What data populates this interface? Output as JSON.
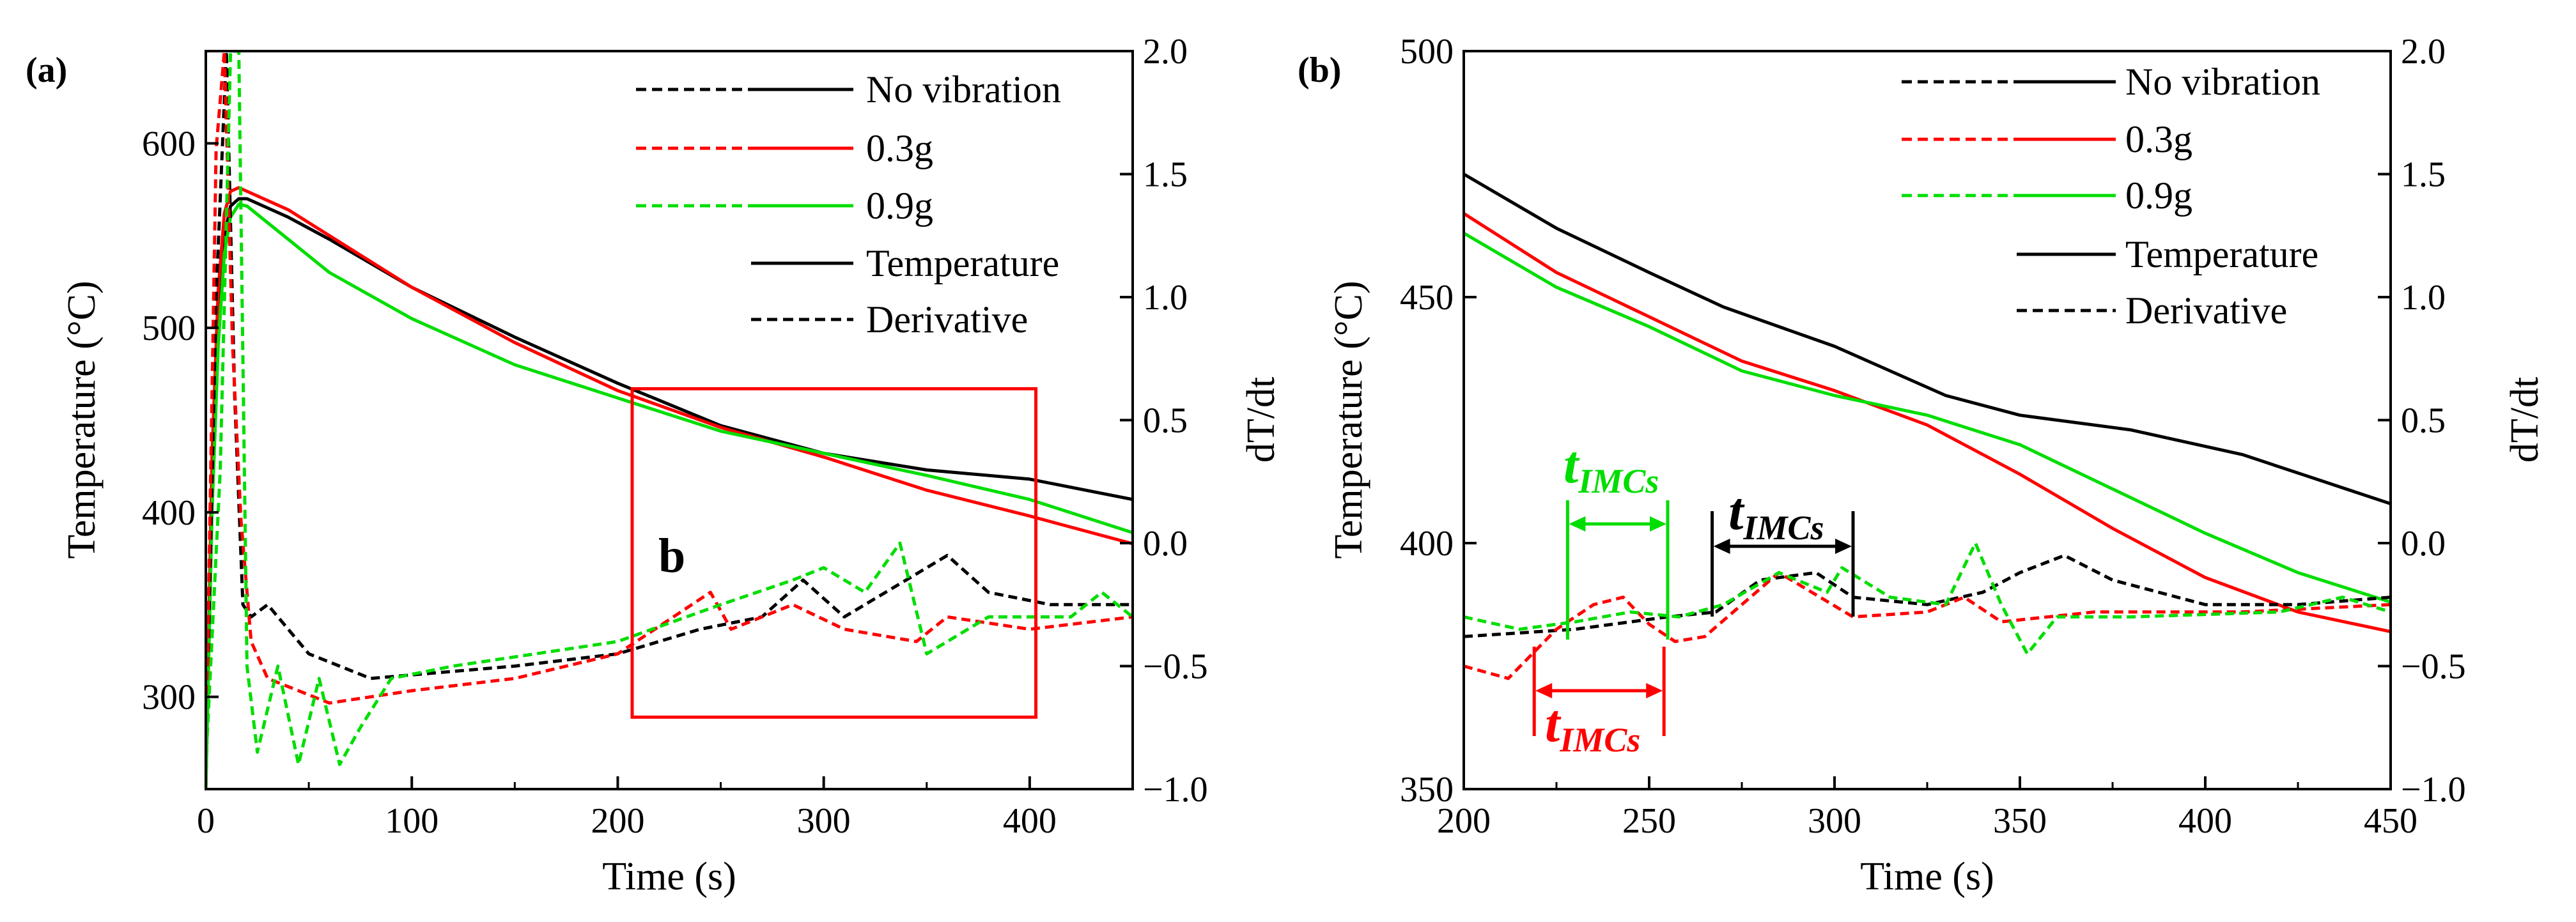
{
  "chart_data": [
    {
      "panel_label": "(a)",
      "type": "line",
      "xlabel": "Time (s)",
      "ylabel": "Temperature (°C)",
      "y2label": "dT/dt",
      "xlim": [
        0,
        450
      ],
      "ylim": [
        250,
        650
      ],
      "y2lim": [
        -1.0,
        2.0
      ],
      "xticks": [
        "0",
        "100",
        "200",
        "300",
        "400"
      ],
      "yticks": [
        "300",
        "400",
        "500",
        "600"
      ],
      "y2ticks": [
        "−1.0",
        "−0.5",
        "0.0",
        "0.5",
        "1.0",
        "1.5",
        "2.0"
      ],
      "inset_label": "b",
      "inset_box": {
        "x": [
          207,
          403
        ],
        "y": [
          289,
          467
        ]
      },
      "series": [
        {
          "name": "No vibration",
          "kind": "temperature",
          "color": "#000000",
          "x": [
            0,
            3,
            6,
            9,
            12,
            16,
            20,
            40,
            60,
            100,
            150,
            200,
            250,
            300,
            350,
            400,
            450
          ],
          "y": [
            250,
            420,
            505,
            550,
            566,
            570,
            570,
            560,
            548,
            522,
            495,
            470,
            447,
            432,
            423,
            418,
            407
          ]
        },
        {
          "name": "0.3g",
          "kind": "temperature",
          "color": "#ff0000",
          "x": [
            0,
            3,
            6,
            9,
            12,
            16,
            20,
            40,
            60,
            100,
            150,
            200,
            250,
            300,
            350,
            400,
            450
          ],
          "y": [
            250,
            430,
            520,
            562,
            574,
            576,
            574,
            564,
            550,
            522,
            492,
            466,
            446,
            430,
            412,
            398,
            383
          ]
        },
        {
          "name": "0.9g",
          "kind": "temperature",
          "color": "#00dd00",
          "x": [
            0,
            3,
            6,
            9,
            12,
            16,
            20,
            40,
            60,
            100,
            150,
            200,
            250,
            300,
            350,
            400,
            450
          ],
          "y": [
            250,
            400,
            490,
            540,
            560,
            567,
            566,
            548,
            530,
            505,
            480,
            462,
            444,
            432,
            420,
            407,
            389
          ]
        },
        {
          "name": "No vibration",
          "kind": "derivative",
          "color": "#000000",
          "x": [
            0,
            5,
            10,
            14,
            18,
            22,
            30,
            50,
            80,
            150,
            200,
            240,
            270,
            290,
            310,
            340,
            360,
            380,
            410,
            450
          ],
          "y": [
            -0.9,
            1.0,
            2.0,
            0.6,
            -0.25,
            -0.3,
            -0.25,
            -0.45,
            -0.55,
            -0.5,
            -0.45,
            -0.35,
            -0.3,
            -0.15,
            -0.3,
            -0.15,
            -0.05,
            -0.2,
            -0.25,
            -0.25
          ]
        },
        {
          "name": "0.3g",
          "kind": "derivative",
          "color": "#ff0000",
          "x": [
            0,
            5,
            9,
            13,
            17,
            22,
            30,
            60,
            100,
            150,
            200,
            245,
            255,
            285,
            310,
            345,
            360,
            400,
            450
          ],
          "y": [
            -0.9,
            1.6,
            2.0,
            0.8,
            0.1,
            -0.4,
            -0.55,
            -0.65,
            -0.6,
            -0.55,
            -0.45,
            -0.2,
            -0.35,
            -0.25,
            -0.35,
            -0.4,
            -0.3,
            -0.35,
            -0.3
          ]
        },
        {
          "name": "0.9g",
          "kind": "derivative",
          "color": "#00dd00",
          "x": [
            0,
            7,
            12,
            16,
            20,
            25,
            35,
            45,
            55,
            65,
            75,
            90,
            120,
            160,
            200,
            250,
            285,
            300,
            320,
            337,
            350,
            380,
            420,
            435,
            450
          ],
          "y": [
            -0.9,
            0.3,
            2.0,
            2.0,
            -0.5,
            -0.85,
            -0.5,
            -0.9,
            -0.55,
            -0.9,
            -0.75,
            -0.55,
            -0.5,
            -0.45,
            -0.4,
            -0.25,
            -0.15,
            -0.1,
            -0.2,
            0.0,
            -0.45,
            -0.3,
            -0.3,
            -0.2,
            -0.3
          ]
        }
      ],
      "legend": [
        {
          "label": "No vibration",
          "color": "#000000",
          "style": "both"
        },
        {
          "label": "0.3g",
          "color": "#ff0000",
          "style": "both"
        },
        {
          "label": "0.9g",
          "color": "#00dd00",
          "style": "both"
        },
        {
          "label": "Temperature",
          "color": "#000000",
          "style": "solid"
        },
        {
          "label": "Derivative",
          "color": "#000000",
          "style": "dashed"
        }
      ]
    },
    {
      "panel_label": "(b)",
      "type": "line",
      "xlabel": "Time (s)",
      "ylabel": "Temperature (°C)",
      "y2label": "dT/dt",
      "xlim": [
        200,
        450
      ],
      "ylim": [
        350,
        500
      ],
      "y2lim": [
        -1.0,
        2.0
      ],
      "xticks": [
        "200",
        "250",
        "300",
        "350",
        "400",
        "450"
      ],
      "yticks": [
        "350",
        "400",
        "450",
        "500"
      ],
      "y2ticks": [
        "−1.0",
        "−0.5",
        "0.0",
        "0.5",
        "1.0",
        "1.5",
        "2.0"
      ],
      "series": [
        {
          "name": "No vibration",
          "kind": "temperature",
          "color": "#000000",
          "x": [
            200,
            225,
            250,
            270,
            300,
            330,
            350,
            380,
            410,
            430,
            450
          ],
          "y": [
            475,
            464,
            455,
            448,
            440,
            430,
            426,
            423,
            418,
            413,
            408
          ]
        },
        {
          "name": "0.3g",
          "kind": "temperature",
          "color": "#ff0000",
          "x": [
            200,
            225,
            250,
            275,
            300,
            325,
            350,
            375,
            400,
            425,
            450
          ],
          "y": [
            467,
            455,
            446,
            437,
            431,
            424,
            414,
            403,
            393,
            386,
            382
          ]
        },
        {
          "name": "0.9g",
          "kind": "temperature",
          "color": "#00dd00",
          "x": [
            200,
            225,
            250,
            275,
            300,
            325,
            350,
            375,
            400,
            425,
            450
          ],
          "y": [
            463,
            452,
            444,
            435,
            430,
            426,
            420,
            411,
            402,
            394,
            388
          ]
        },
        {
          "name": "No vibration",
          "kind": "derivative",
          "color": "#000000",
          "x": [
            200,
            230,
            255,
            268,
            280,
            295,
            305,
            325,
            340,
            350,
            362,
            375,
            400,
            425,
            450
          ],
          "y": [
            -0.38,
            -0.35,
            -0.3,
            -0.28,
            -0.15,
            -0.12,
            -0.22,
            -0.25,
            -0.2,
            -0.12,
            -0.05,
            -0.15,
            -0.25,
            -0.25,
            -0.22
          ]
        },
        {
          "name": "0.3g",
          "kind": "derivative",
          "color": "#ff0000",
          "x": [
            200,
            212,
            225,
            235,
            243,
            250,
            257,
            265,
            285,
            305,
            325,
            335,
            345,
            370,
            410,
            450
          ],
          "y": [
            -0.5,
            -0.55,
            -0.35,
            -0.25,
            -0.22,
            -0.33,
            -0.4,
            -0.38,
            -0.12,
            -0.3,
            -0.28,
            -0.22,
            -0.32,
            -0.28,
            -0.28,
            -0.25
          ]
        },
        {
          "name": "0.9g",
          "kind": "derivative",
          "color": "#00dd00",
          "x": [
            200,
            215,
            230,
            245,
            258,
            270,
            285,
            298,
            302,
            315,
            330,
            338,
            345,
            352,
            360,
            380,
            420,
            437,
            450
          ],
          "y": [
            -0.3,
            -0.35,
            -0.32,
            -0.28,
            -0.3,
            -0.25,
            -0.12,
            -0.2,
            -0.1,
            -0.22,
            -0.25,
            0.0,
            -0.25,
            -0.45,
            -0.3,
            -0.3,
            -0.28,
            -0.22,
            -0.28
          ]
        }
      ],
      "legend": [
        {
          "label": "No vibration",
          "color": "#000000",
          "style": "both"
        },
        {
          "label": "0.3g",
          "color": "#ff0000",
          "style": "both"
        },
        {
          "label": "0.9g",
          "color": "#00dd00",
          "style": "both"
        },
        {
          "label": "Temperature",
          "color": "#000000",
          "style": "solid"
        },
        {
          "label": "Derivative",
          "color": "#000000",
          "style": "dashed"
        }
      ],
      "annotations": [
        {
          "name": "0.9g",
          "main": "t",
          "sub": "IMCs",
          "color": "#00dd00",
          "x": [
            228,
            255
          ]
        },
        {
          "name": "no-vibration",
          "main": "t",
          "sub": "IMCs",
          "color": "#000000",
          "x": [
            267,
            305
          ]
        },
        {
          "name": "0.3g",
          "main": "t",
          "sub": "IMCs",
          "color": "#ff0000",
          "x": [
            219,
            254
          ]
        }
      ]
    }
  ]
}
